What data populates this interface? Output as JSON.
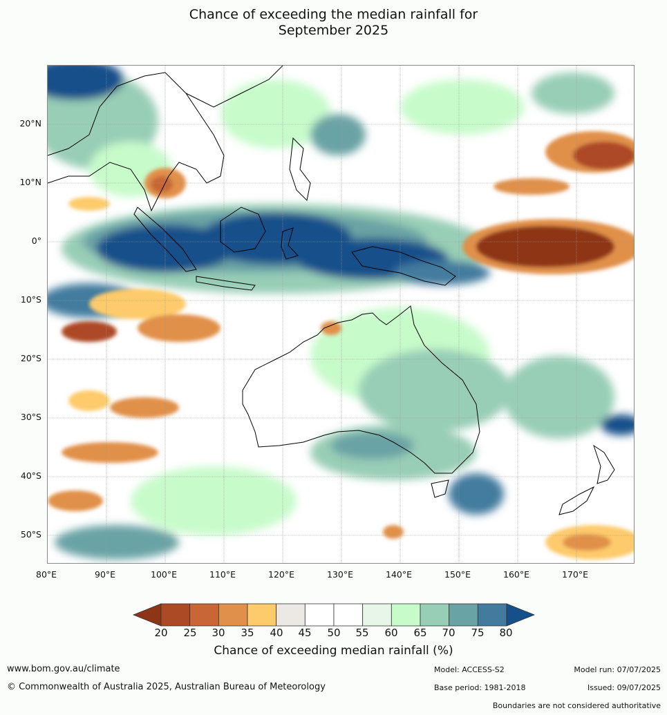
{
  "title_line1": "Chance of exceeding the median rainfall for",
  "title_line2": "September 2025",
  "map": {
    "lon_ticks": [
      "80°E",
      "90°E",
      "100°E",
      "110°E",
      "120°E",
      "130°E",
      "140°E",
      "150°E",
      "160°E",
      "170°E"
    ],
    "lat_ticks": [
      "20°N",
      "10°N",
      "0°",
      "10°S",
      "20°S",
      "30°S",
      "40°S",
      "50°S"
    ],
    "extent": {
      "lon": [
        80,
        180
      ],
      "lat": [
        -55,
        30
      ]
    }
  },
  "colorbar": {
    "labels": [
      "20",
      "25",
      "30",
      "35",
      "40",
      "45",
      "50",
      "55",
      "60",
      "65",
      "70",
      "75",
      "80"
    ],
    "colors": [
      "#8e3518",
      "#ad4a26",
      "#c86636",
      "#e0904a",
      "#fdcb6c",
      "#ece9e4",
      "#ffffff",
      "#ffffff",
      "#e8f6ea",
      "#c7fbca",
      "#98ceb6",
      "#6aa3a5",
      "#437b9e",
      "#15508a"
    ],
    "title": "Chance of exceeding median rainfall (%)"
  },
  "footer": {
    "url": "www.bom.gov.au/climate",
    "copyright": "© Commonwealth of Australia 2025, Australian Bureau of Meteorology",
    "model": "Model: ACCESS-S2",
    "base_period": "Base period: 1981-2018",
    "model_run": "Model run: 07/07/2025",
    "issued": "Issued: 09/07/2025",
    "disclaimer": "Boundaries are not considered authoritative"
  }
}
